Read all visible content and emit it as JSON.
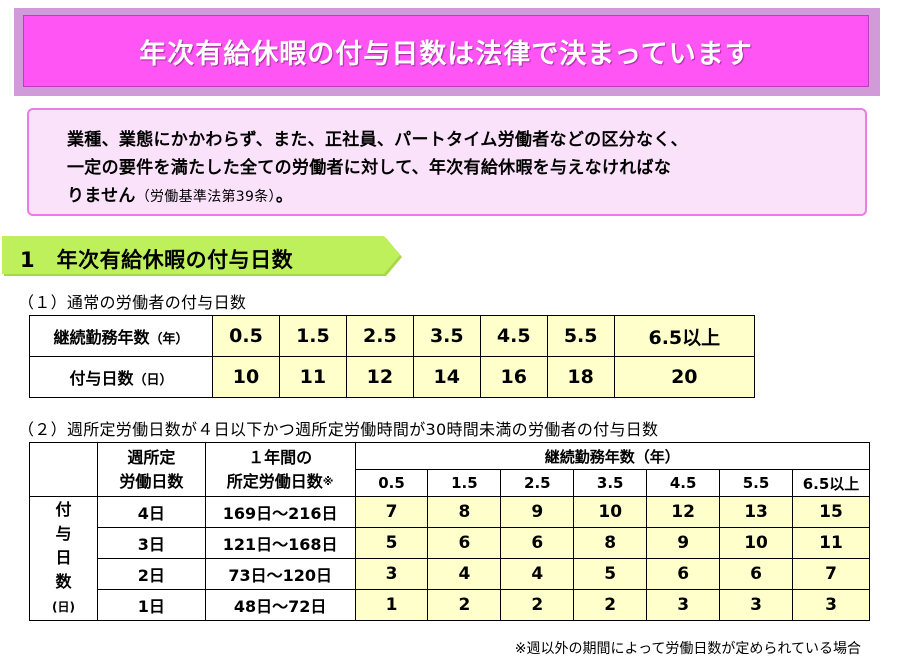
{
  "banner": {
    "title": "年次有給休暇の付与日数は法律で決まっています"
  },
  "notice": {
    "line1": "業種、業態にかかわらず、また、正社員、パートタイム労働者などの区分なく、",
    "line2": "一定の要件を満たした全ての労働者に対して、年次有給休暇を与えなければな",
    "line3": "りません",
    "citation": "（労働基準法第39条）",
    "end": "。"
  },
  "section1": {
    "label": "1　年次有給休暇の付与日数"
  },
  "sub1": {
    "label": "（１）通常の労働者の付与日数"
  },
  "table1": {
    "row_header_years": "継続勤務年数",
    "row_header_years_unit": "（年）",
    "row_header_days": "付与日数",
    "row_header_days_unit": "（日）",
    "years": [
      "0.5",
      "1.5",
      "2.5",
      "3.5",
      "4.5",
      "5.5",
      "6.5以上"
    ],
    "days": [
      "10",
      "11",
      "12",
      "14",
      "16",
      "18",
      "20"
    ]
  },
  "sub2": {
    "label": "（２）週所定労働日数が４日以下かつ週所定労働時間が30時間未満の労働者の付与日数"
  },
  "table2": {
    "col_weekly_l1": "週所定",
    "col_weekly_l2": "労働日数",
    "col_annual_l1": "１年間の",
    "col_annual_l2": "所定労働日数",
    "col_annual_mark": "※",
    "col_years": "継続勤務年数（年）",
    "years": [
      "0.5",
      "1.5",
      "2.5",
      "3.5",
      "4.5",
      "5.5",
      "6.5以上"
    ],
    "side_chars": [
      "付",
      "与",
      "日",
      "数"
    ],
    "side_unit": "(日)",
    "rows": [
      {
        "weekly": "4日",
        "annual": "169日～216日",
        "values": [
          "7",
          "8",
          "9",
          "10",
          "12",
          "13",
          "15"
        ]
      },
      {
        "weekly": "3日",
        "annual": "121日～168日",
        "values": [
          "5",
          "6",
          "6",
          "8",
          "9",
          "10",
          "11"
        ]
      },
      {
        "weekly": "2日",
        "annual": "73日～120日",
        "values": [
          "3",
          "4",
          "4",
          "5",
          "6",
          "6",
          "7"
        ]
      },
      {
        "weekly": "1日",
        "annual": "48日～72日",
        "values": [
          "1",
          "2",
          "2",
          "2",
          "3",
          "3",
          "3"
        ]
      }
    ]
  },
  "footnote": {
    "text": "※週以外の期間によって労働日数が定められている場合"
  },
  "colors": {
    "banner_fill": "#ff55f4",
    "banner_frame": "#d19ad8",
    "notice_fill": "#fbe2fb",
    "section_arrow": "#bdf05a",
    "cell_yellow": "#ffffcc"
  }
}
